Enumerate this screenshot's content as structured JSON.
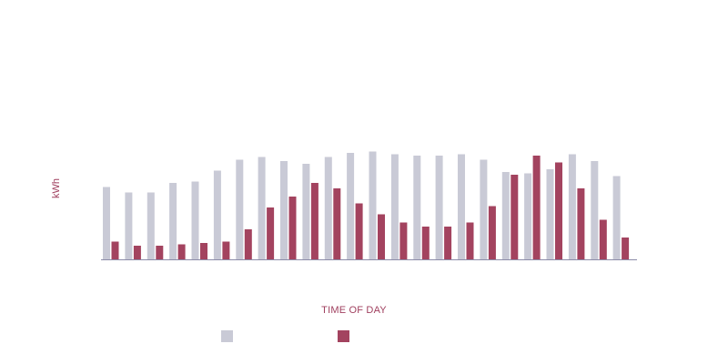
{
  "chart_data": {
    "type": "bar",
    "xlabel": "TIME OF DAY",
    "ylabel": "kWh",
    "ylim": [
      0,
      10
    ],
    "grid": false,
    "legend_position": "bottom",
    "categories": [
      "",
      "",
      "",
      "",
      "",
      "",
      "",
      "",
      "",
      "",
      "",
      "",
      "",
      "",
      "",
      "",
      "",
      "",
      "",
      "",
      "",
      "",
      "",
      ""
    ],
    "series": [
      {
        "values": [
          5.3,
          4.9,
          4.9,
          5.6,
          5.7,
          6.5,
          7.3,
          7.5,
          7.2,
          7.0,
          7.5,
          7.8,
          7.9,
          7.7,
          7.6,
          7.6,
          7.7,
          7.3,
          6.4,
          6.3,
          6.6,
          7.7,
          7.2,
          6.1
        ]
      },
      {
        "values": [
          1.3,
          1.0,
          1.0,
          1.1,
          1.2,
          1.3,
          2.2,
          3.8,
          4.6,
          5.6,
          5.2,
          4.1,
          3.3,
          2.7,
          2.4,
          2.4,
          2.7,
          3.9,
          6.2,
          7.6,
          7.1,
          5.2,
          2.9,
          1.6
        ]
      }
    ],
    "colors": [
      "#c9cad6",
      "#a3435f"
    ],
    "axis_color": "#8c8ca8"
  }
}
